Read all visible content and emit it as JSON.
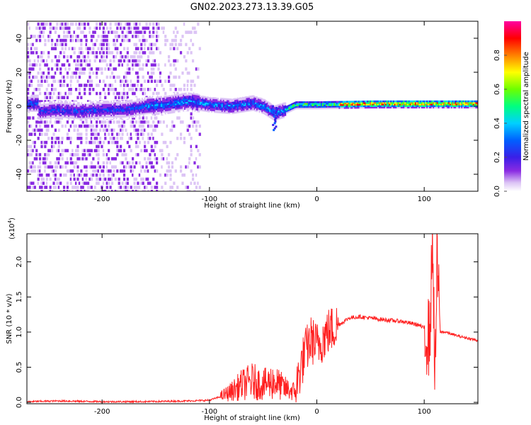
{
  "figure_title": "GN02.2023.273.13.39.G05",
  "chart_data": [
    {
      "type": "heatmap",
      "xlabel": "Height of straight line (km)",
      "ylabel": "Frequency (Hz)",
      "xlim": [
        -270,
        150
      ],
      "ylim": [
        -50,
        50
      ],
      "x_ticks": [
        "-200",
        "-100",
        "0",
        "100"
      ],
      "y_ticks": [
        "-40",
        "-20",
        "0",
        "20",
        "40"
      ],
      "colorbar": {
        "label": "Normalized spectral amplitude",
        "ticks": [
          "0.0",
          "0.2",
          "0.4",
          "0.6",
          "0.8"
        ],
        "range": [
          0,
          1
        ],
        "colors": [
          "#ffffff",
          "#dcc4f5",
          "#8a2be2",
          "#3a1fe8",
          "#0060ff",
          "#00d0ff",
          "#00ff80",
          "#6cff00",
          "#ffff00",
          "#ff8000",
          "#ff0000",
          "#ff00a0"
        ]
      },
      "features": {
        "noise_region_km": [
          -270,
          -110
        ],
        "main_band_center_hz": [
          [
            -260,
            -3
          ],
          [
            -240,
            -2
          ],
          [
            -220,
            -3
          ],
          [
            -200,
            -2
          ],
          [
            -180,
            -2
          ],
          [
            -160,
            0
          ],
          [
            -140,
            1
          ],
          [
            -120,
            3
          ],
          [
            -100,
            1
          ],
          [
            -80,
            0
          ],
          [
            -60,
            2
          ],
          [
            -50,
            0
          ],
          [
            -40,
            -4
          ],
          [
            -30,
            -2
          ],
          [
            -20,
            1
          ],
          [
            0,
            1
          ],
          [
            50,
            1.5
          ],
          [
            100,
            1.5
          ],
          [
            150,
            1.5
          ]
        ],
        "deviation_at_km": [
          -40,
          -15
        ]
      }
    },
    {
      "type": "line",
      "xlabel": "Height of straight line (km)",
      "ylabel": "SNR (10 * v/v)",
      "y_multiplier": "(x10",
      "y_multiplier_exp": "4",
      "y_multiplier_close": ")",
      "xlim": [
        -270,
        150
      ],
      "ylim": [
        -0.02,
        2.4
      ],
      "x_ticks": [
        "-200",
        "-100",
        "0",
        "100"
      ],
      "y_ticks": [
        "0.0",
        "0.5",
        "1.0",
        "1.5",
        "2.0"
      ],
      "color": "#ff2020",
      "series": [
        {
          "x": [
            -270,
            -240,
            -200,
            -160,
            -120,
            -100,
            -90,
            -80,
            -70,
            -60,
            -50,
            -40,
            -30,
            -20,
            -15,
            -10,
            -5,
            0,
            10,
            20,
            30,
            40,
            60,
            80,
            95,
            100,
            105,
            108,
            110,
            112,
            115,
            120,
            130,
            150
          ],
          "values": [
            0.01,
            0.02,
            0.01,
            0.01,
            0.02,
            0.03,
            0.08,
            0.15,
            0.25,
            0.3,
            0.25,
            0.3,
            0.2,
            0.15,
            0.5,
            0.75,
            0.9,
            0.8,
            1.0,
            1.1,
            1.2,
            1.22,
            1.18,
            1.15,
            1.1,
            1.05,
            0.9,
            2.35,
            0.2,
            2.0,
            1.0,
            1.0,
            0.95,
            0.88
          ]
        }
      ]
    }
  ]
}
